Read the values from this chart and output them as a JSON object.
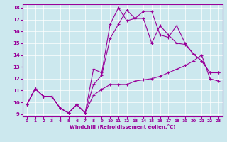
{
  "xlabel": "Windchill (Refroidissement éolien,°C)",
  "ylabel": "",
  "xlim": [
    -0.5,
    23.5
  ],
  "ylim": [
    8.8,
    18.3
  ],
  "yticks": [
    9,
    10,
    11,
    12,
    13,
    14,
    15,
    16,
    17,
    18
  ],
  "xticks": [
    0,
    1,
    2,
    3,
    4,
    5,
    6,
    7,
    8,
    9,
    10,
    11,
    12,
    13,
    14,
    15,
    16,
    17,
    18,
    19,
    20,
    21,
    22,
    23
  ],
  "bg_color": "#cce8ee",
  "line_color": "#990099",
  "grid_color": "#ffffff",
  "line1_x": [
    0,
    1,
    2,
    3,
    4,
    5,
    6,
    7,
    8,
    9,
    10,
    11,
    12,
    13,
    14,
    15,
    16,
    17,
    18,
    19,
    20,
    21,
    22,
    23
  ],
  "line1_y": [
    9.8,
    11.15,
    10.5,
    10.5,
    9.5,
    9.1,
    9.8,
    9.1,
    10.6,
    11.1,
    11.5,
    11.5,
    11.5,
    11.8,
    11.9,
    12.0,
    12.2,
    12.5,
    12.8,
    13.1,
    13.5,
    14.0,
    12.0,
    11.8
  ],
  "line2_x": [
    0,
    1,
    2,
    3,
    4,
    5,
    6,
    7,
    8,
    9,
    10,
    11,
    12,
    13,
    14,
    15,
    16,
    17,
    18,
    19,
    20,
    21,
    22,
    23
  ],
  "line2_y": [
    9.8,
    11.15,
    10.5,
    10.5,
    9.5,
    9.1,
    9.8,
    9.1,
    11.5,
    12.3,
    15.4,
    16.6,
    17.8,
    17.1,
    17.1,
    15.0,
    16.5,
    15.7,
    15.0,
    14.9,
    14.1,
    13.5,
    12.5,
    12.5
  ],
  "line3_x": [
    0,
    1,
    2,
    3,
    4,
    5,
    6,
    7,
    8,
    9,
    10,
    11,
    12,
    13,
    14,
    15,
    16,
    17,
    18,
    19,
    20,
    21,
    22,
    23
  ],
  "line3_y": [
    9.8,
    11.15,
    10.5,
    10.5,
    9.5,
    9.1,
    9.8,
    9.1,
    12.8,
    12.5,
    16.6,
    18.0,
    16.9,
    17.1,
    17.7,
    17.7,
    15.7,
    15.5,
    16.5,
    15.0,
    14.1,
    13.5,
    12.5,
    12.5
  ]
}
